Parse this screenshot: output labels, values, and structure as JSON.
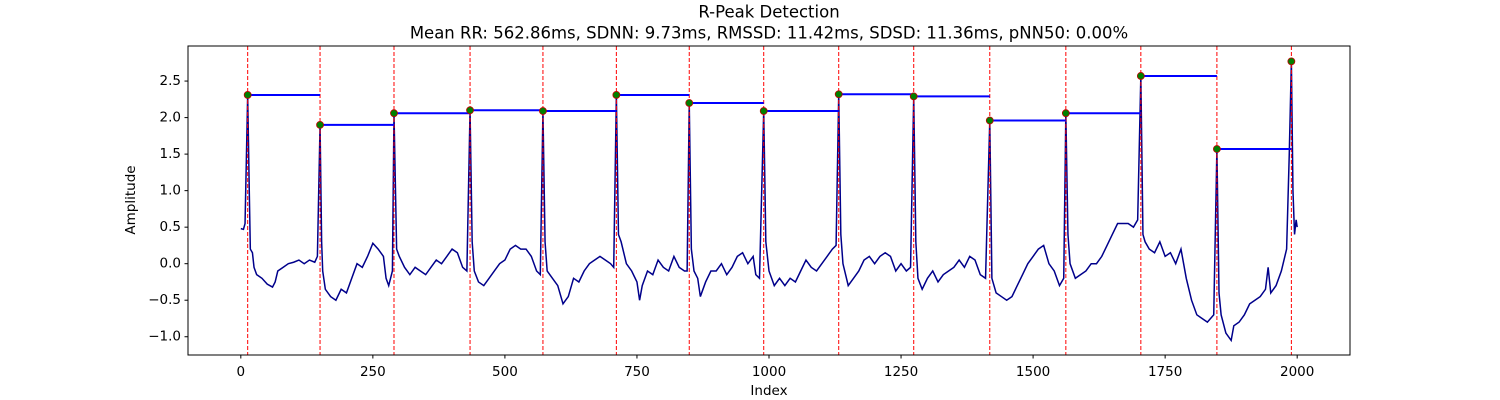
{
  "chart_data": {
    "type": "line",
    "title": "R-Peak Detection",
    "subtitle": "Mean RR: 562.86ms, SDNN: 9.73ms, RMSSD: 11.42ms, SDSD: 11.36ms, pNN50: 0.00%",
    "xlabel": "Index",
    "ylabel": "Amplitude",
    "xlim": [
      -100,
      2100
    ],
    "ylim": [
      -1.25,
      2.98
    ],
    "xticks": [
      0,
      250,
      500,
      750,
      1000,
      1250,
      1500,
      1750,
      2000
    ],
    "yticks": [
      {
        "value": -1.0,
        "label": "−1.0"
      },
      {
        "value": -0.5,
        "label": "−0.5"
      },
      {
        "value": 0.0,
        "label": "0.0"
      },
      {
        "value": 0.5,
        "label": "0.5"
      },
      {
        "value": 1.0,
        "label": "1.0"
      },
      {
        "value": 1.5,
        "label": "1.5"
      },
      {
        "value": 2.0,
        "label": "2.0"
      },
      {
        "value": 2.5,
        "label": "2.5"
      }
    ],
    "series": [
      {
        "color": "#00008b",
        "x": [
          0,
          5,
          8,
          13,
          16,
          18,
          22,
          25,
          30,
          40,
          50,
          60,
          65,
          70,
          80,
          90,
          100,
          110,
          120,
          130,
          140,
          145,
          150,
          153,
          155,
          160,
          170,
          180,
          190,
          200,
          210,
          220,
          230,
          240,
          250,
          260,
          270,
          275,
          280,
          287,
          290,
          295,
          300,
          310,
          320,
          330,
          340,
          350,
          360,
          370,
          380,
          390,
          400,
          410,
          420,
          428,
          434,
          438,
          442,
          450,
          460,
          470,
          480,
          490,
          500,
          510,
          520,
          530,
          540,
          550,
          560,
          567,
          572,
          576,
          580,
          590,
          600,
          610,
          620,
          630,
          640,
          650,
          660,
          670,
          680,
          690,
          700,
          706,
          711,
          715,
          720,
          730,
          740,
          750,
          755,
          760,
          770,
          780,
          790,
          800,
          810,
          820,
          830,
          840,
          845,
          849,
          853,
          858,
          865,
          870,
          880,
          890,
          900,
          910,
          920,
          930,
          940,
          950,
          960,
          970,
          975,
          982,
          990,
          994,
          1000,
          1010,
          1020,
          1030,
          1040,
          1050,
          1060,
          1070,
          1080,
          1090,
          1100,
          1110,
          1120,
          1127,
          1132,
          1136,
          1140,
          1150,
          1160,
          1170,
          1180,
          1190,
          1200,
          1210,
          1220,
          1230,
          1240,
          1250,
          1260,
          1268,
          1274,
          1278,
          1282,
          1290,
          1300,
          1310,
          1320,
          1330,
          1340,
          1350,
          1360,
          1370,
          1380,
          1390,
          1400,
          1410,
          1418,
          1422,
          1430,
          1440,
          1450,
          1460,
          1470,
          1480,
          1490,
          1500,
          1510,
          1520,
          1530,
          1540,
          1550,
          1558,
          1562,
          1566,
          1570,
          1580,
          1590,
          1600,
          1610,
          1620,
          1630,
          1640,
          1650,
          1660,
          1670,
          1680,
          1690,
          1698,
          1704,
          1708,
          1712,
          1720,
          1730,
          1740,
          1750,
          1760,
          1770,
          1780,
          1790,
          1800,
          1810,
          1820,
          1830,
          1842,
          1848,
          1852,
          1856,
          1865,
          1875,
          1880,
          1890,
          1900,
          1910,
          1920,
          1930,
          1940,
          1945,
          1950,
          1960,
          1970,
          1980,
          1985,
          1989,
          1992,
          1995,
          1998,
          2000
        ],
        "values": [
          0.48,
          0.47,
          0.55,
          2.31,
          1.0,
          0.2,
          0.15,
          -0.05,
          -0.15,
          -0.2,
          -0.28,
          -0.32,
          -0.25,
          -0.1,
          -0.05,
          0.0,
          0.02,
          0.05,
          0.0,
          0.05,
          0.02,
          0.1,
          1.9,
          0.3,
          -0.1,
          -0.35,
          -0.45,
          -0.5,
          -0.35,
          -0.4,
          -0.2,
          0.0,
          -0.05,
          0.1,
          0.28,
          0.2,
          0.1,
          -0.2,
          -0.3,
          -0.1,
          2.06,
          0.2,
          0.1,
          -0.05,
          -0.15,
          -0.05,
          -0.1,
          -0.15,
          -0.05,
          0.05,
          0.0,
          0.1,
          0.2,
          0.15,
          -0.05,
          -0.1,
          2.1,
          0.3,
          -0.1,
          -0.25,
          -0.3,
          -0.2,
          -0.1,
          0.0,
          0.05,
          0.2,
          0.25,
          0.2,
          0.2,
          0.1,
          -0.1,
          -0.15,
          2.09,
          0.3,
          -0.1,
          -0.2,
          -0.3,
          -0.55,
          -0.45,
          -0.2,
          -0.25,
          -0.1,
          0.0,
          0.05,
          0.1,
          0.05,
          0.0,
          -0.05,
          2.31,
          0.4,
          0.3,
          0.0,
          -0.1,
          -0.25,
          -0.5,
          -0.3,
          -0.1,
          -0.15,
          0.05,
          -0.05,
          -0.1,
          0.1,
          -0.05,
          -0.1,
          -0.1,
          2.2,
          0.2,
          -0.1,
          -0.2,
          -0.45,
          -0.25,
          -0.1,
          -0.1,
          0.0,
          -0.15,
          -0.05,
          0.1,
          0.15,
          0.0,
          0.1,
          -0.15,
          -0.2,
          2.09,
          0.3,
          -0.1,
          -0.3,
          -0.2,
          -0.3,
          -0.2,
          -0.25,
          -0.1,
          0.05,
          -0.05,
          -0.1,
          0.0,
          0.1,
          0.2,
          0.25,
          2.32,
          0.4,
          0.0,
          -0.3,
          -0.2,
          -0.1,
          0.05,
          0.1,
          0.0,
          0.1,
          0.15,
          0.1,
          -0.1,
          0.0,
          -0.1,
          -0.05,
          2.29,
          0.3,
          -0.2,
          -0.35,
          -0.2,
          -0.1,
          -0.25,
          -0.15,
          -0.1,
          -0.05,
          0.05,
          -0.05,
          0.1,
          0.05,
          -0.15,
          -0.2,
          1.96,
          -0.2,
          -0.4,
          -0.45,
          -0.5,
          -0.45,
          -0.3,
          -0.15,
          0.0,
          0.1,
          0.2,
          0.25,
          0.0,
          -0.1,
          -0.3,
          -0.2,
          2.06,
          0.4,
          0.0,
          -0.2,
          -0.15,
          -0.1,
          0.0,
          0.0,
          0.1,
          0.25,
          0.4,
          0.55,
          0.55,
          0.55,
          0.5,
          0.6,
          2.57,
          0.4,
          0.3,
          0.2,
          0.15,
          0.3,
          0.1,
          0.15,
          0.0,
          0.2,
          -0.2,
          -0.5,
          -0.7,
          -0.75,
          -0.8,
          -0.7,
          1.57,
          -0.4,
          -0.7,
          -0.95,
          -1.05,
          -0.85,
          -0.8,
          -0.7,
          -0.55,
          -0.5,
          -0.45,
          -0.35,
          -0.05,
          -0.4,
          -0.3,
          -0.1,
          0.2,
          1.5,
          2.77,
          1.0,
          0.4,
          0.6,
          0.5
        ]
      }
    ],
    "peaks": {
      "color": "#008000",
      "edgecolor": "#c00000",
      "line_color": "#ff0000",
      "interval_color": "#0000ff",
      "x": [
        13,
        150,
        290,
        434,
        572,
        711,
        849,
        990,
        1132,
        1274,
        1418,
        1562,
        1704,
        1848,
        1989
      ],
      "values": [
        2.31,
        1.9,
        2.06,
        2.1,
        2.09,
        2.31,
        2.2,
        2.09,
        2.32,
        2.29,
        1.96,
        2.06,
        2.57,
        1.57,
        2.77
      ]
    }
  }
}
